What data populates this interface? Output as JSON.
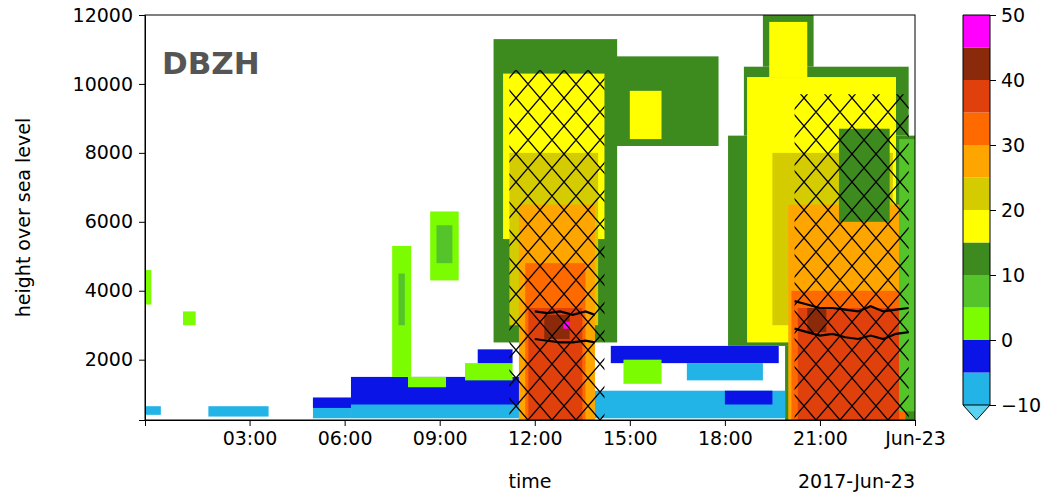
{
  "chart_data": {
    "type": "heatmap",
    "title": "DBZH",
    "xlabel": "time",
    "ylabel": "height over sea level",
    "annotations": [
      {
        "text": "2017-Jun-23"
      }
    ],
    "xlim": [
      -0.3,
      24
    ],
    "xticks": [
      {
        "value": 3,
        "label": "03:00"
      },
      {
        "value": 6,
        "label": "06:00"
      },
      {
        "value": 9,
        "label": "09:00"
      },
      {
        "value": 12,
        "label": "12:00"
      },
      {
        "value": 15,
        "label": "15:00"
      },
      {
        "value": 18,
        "label": "18:00"
      },
      {
        "value": 21,
        "label": "21:00"
      },
      {
        "value": 24,
        "label": "Jun-23"
      }
    ],
    "ylim": [
      250,
      12000
    ],
    "yticks": [
      2000,
      4000,
      6000,
      8000,
      10000,
      12000
    ],
    "cells": [
      {
        "t0": -0.3,
        "t1": 0.2,
        "h0": 400,
        "h1": 650,
        "dbz": -8
      },
      {
        "t0": -0.3,
        "t1": -0.1,
        "h0": 3600,
        "h1": 4600,
        "dbz": 3
      },
      {
        "t0": 0.9,
        "t1": 1.3,
        "h0": 3000,
        "h1": 3400,
        "dbz": 2
      },
      {
        "t0": 1.7,
        "t1": 3.6,
        "h0": 350,
        "h1": 650,
        "dbz": -8
      },
      {
        "t0": 5.0,
        "t1": 6.2,
        "h0": 300,
        "h1": 900,
        "dbz": -7
      },
      {
        "t0": 5.0,
        "t1": 6.2,
        "h0": 600,
        "h1": 900,
        "dbz": -3
      },
      {
        "t0": 6.2,
        "t1": 11.8,
        "h0": 300,
        "h1": 1000,
        "dbz": -7
      },
      {
        "t0": 6.2,
        "t1": 11.8,
        "h0": 700,
        "h1": 1500,
        "dbz": -3
      },
      {
        "t0": 8.0,
        "t1": 9.2,
        "h0": 1200,
        "h1": 1500,
        "dbz": 2
      },
      {
        "t0": 9.8,
        "t1": 11.3,
        "h0": 1400,
        "h1": 1900,
        "dbz": 2
      },
      {
        "t0": 10.2,
        "t1": 11.3,
        "h0": 1900,
        "h1": 2300,
        "dbz": -3
      },
      {
        "t0": 7.5,
        "t1": 8.1,
        "h0": 1500,
        "h1": 5300,
        "dbz": 2
      },
      {
        "t0": 7.7,
        "t1": 7.9,
        "h0": 3000,
        "h1": 4500,
        "dbz": 7
      },
      {
        "t0": 8.7,
        "t1": 9.6,
        "h0": 4300,
        "h1": 6300,
        "dbz": 3
      },
      {
        "t0": 8.9,
        "t1": 9.4,
        "h0": 4800,
        "h1": 5900,
        "dbz": 8
      },
      {
        "t0": 10.7,
        "t1": 14.6,
        "h0": 2500,
        "h1": 11300,
        "dbz": 12
      },
      {
        "t0": 11.0,
        "t1": 14.2,
        "h0": 5500,
        "h1": 10300,
        "dbz": 17
      },
      {
        "t0": 11.2,
        "t1": 14.0,
        "h0": 3000,
        "h1": 8000,
        "dbz": 22
      },
      {
        "t0": 11.5,
        "t1": 13.9,
        "h0": 250,
        "h1": 6500,
        "dbz": 27
      },
      {
        "t0": 11.7,
        "t1": 13.6,
        "h0": 250,
        "h1": 4800,
        "dbz": 32
      },
      {
        "t0": 11.8,
        "t1": 13.5,
        "h0": 250,
        "h1": 3500,
        "dbz": 37
      },
      {
        "t0": 12.3,
        "t1": 13.1,
        "h0": 2600,
        "h1": 3300,
        "dbz": 42
      },
      {
        "t0": 12.9,
        "t1": 13.1,
        "h0": 2900,
        "h1": 3100,
        "dbz": 47
      },
      {
        "t0": 14.5,
        "t1": 17.8,
        "h0": 8200,
        "h1": 10800,
        "dbz": 12
      },
      {
        "t0": 15.0,
        "t1": 16.0,
        "h0": 8400,
        "h1": 9800,
        "dbz": 17
      },
      {
        "t0": 13.9,
        "t1": 19.9,
        "h0": 300,
        "h1": 1100,
        "dbz": -7
      },
      {
        "t0": 14.4,
        "t1": 19.7,
        "h0": 1900,
        "h1": 2400,
        "dbz": -3
      },
      {
        "t0": 14.8,
        "t1": 16.0,
        "h0": 1300,
        "h1": 2000,
        "dbz": 3
      },
      {
        "t0": 16.8,
        "t1": 19.2,
        "h0": 1400,
        "h1": 1900,
        "dbz": -7
      },
      {
        "t0": 18.0,
        "t1": 19.5,
        "h0": 700,
        "h1": 1100,
        "dbz": -3
      },
      {
        "t0": 18.1,
        "t1": 24.0,
        "h0": 2400,
        "h1": 8500,
        "dbz": 12
      },
      {
        "t0": 19.9,
        "t1": 24.0,
        "h0": 250,
        "h1": 2400,
        "dbz": 12
      },
      {
        "t0": 18.6,
        "t1": 23.8,
        "h0": 8500,
        "h1": 10500,
        "dbz": 12
      },
      {
        "t0": 19.2,
        "t1": 20.8,
        "h0": 10500,
        "h1": 12000,
        "dbz": 12
      },
      {
        "t0": 18.7,
        "t1": 23.4,
        "h0": 2500,
        "h1": 10200,
        "dbz": 17
      },
      {
        "t0": 19.4,
        "t1": 20.6,
        "h0": 10200,
        "h1": 11800,
        "dbz": 17
      },
      {
        "t0": 19.5,
        "t1": 23.3,
        "h0": 3000,
        "h1": 8000,
        "dbz": 22
      },
      {
        "t0": 20.0,
        "t1": 23.5,
        "h0": 250,
        "h1": 6500,
        "dbz": 27
      },
      {
        "t0": 20.1,
        "t1": 23.7,
        "h0": 250,
        "h1": 4000,
        "dbz": 33
      },
      {
        "t0": 20.3,
        "t1": 23.5,
        "h0": 250,
        "h1": 3500,
        "dbz": 37
      },
      {
        "t0": 20.6,
        "t1": 21.2,
        "h0": 2800,
        "h1": 3500,
        "dbz": 42
      },
      {
        "t0": 21.6,
        "t1": 23.2,
        "h0": 6000,
        "h1": 8700,
        "dbz": 12
      },
      {
        "t0": 23.5,
        "t1": 24.0,
        "h0": 500,
        "h1": 8400,
        "dbz": 7
      }
    ],
    "hatch": [
      {
        "t0": 11.2,
        "t1": 14.2,
        "h0": 250,
        "h1": 10400
      },
      {
        "t0": 20.2,
        "t1": 23.8,
        "h0": 250,
        "h1": 9700
      }
    ],
    "series": [
      {
        "color": "#000000",
        "x": [
          12.0,
          12.4,
          12.8,
          13.2,
          13.6,
          13.9
        ],
        "values": [
          3400,
          3350,
          3400,
          3300,
          3400,
          3300
        ]
      },
      {
        "color": "#000000",
        "x": [
          12.0,
          12.4,
          12.8,
          13.2,
          13.6,
          13.9
        ],
        "values": [
          2600,
          2550,
          2500,
          2500,
          2550,
          2500
        ]
      },
      {
        "color": "#000000",
        "x": [
          20.2,
          20.6,
          21.0,
          21.4,
          21.8,
          22.2,
          22.6,
          23.0,
          23.4,
          23.8
        ],
        "values": [
          3700,
          3600,
          3500,
          3500,
          3450,
          3400,
          3550,
          3400,
          3450,
          3500
        ]
      },
      {
        "color": "#000000",
        "x": [
          20.2,
          20.6,
          21.0,
          21.4,
          21.8,
          22.2,
          22.6,
          23.0,
          23.4,
          23.8
        ],
        "values": [
          2900,
          2800,
          2700,
          2750,
          2650,
          2600,
          2700,
          2600,
          2750,
          2800
        ]
      }
    ],
    "colorbar": {
      "lim": [
        -10,
        50
      ],
      "bounds": [
        -10,
        -5,
        0,
        5,
        10,
        15,
        20,
        25,
        30,
        35,
        40,
        45,
        50
      ],
      "colors": [
        "#22b4e6",
        "#0a14e6",
        "#7cfc00",
        "#55c42a",
        "#3d8a1f",
        "#ffff00",
        "#d4cc00",
        "#ffa500",
        "#ff6a00",
        "#e0400c",
        "#8b2a0a",
        "#ff00ff"
      ],
      "under_color": "#5ad2f0",
      "ticks": [
        {
          "value": -10,
          "label": "−10"
        },
        0,
        10,
        20,
        30,
        40,
        50
      ]
    }
  }
}
